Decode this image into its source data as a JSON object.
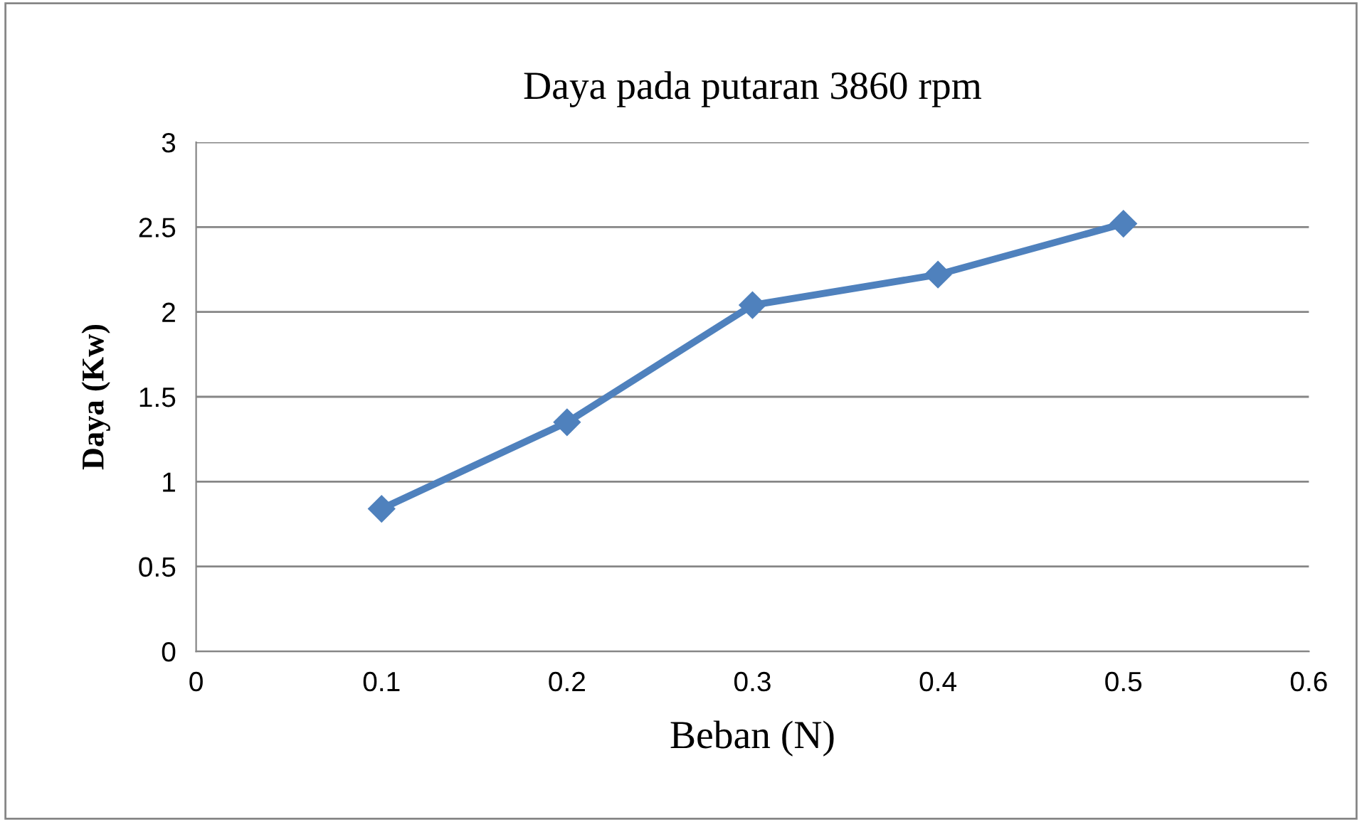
{
  "chart_data": {
    "type": "line",
    "title": "Daya pada putaran 3860 rpm",
    "xlabel": "Beban (N)",
    "ylabel": "Daya (Kw)",
    "x": [
      0.1,
      0.2,
      0.3,
      0.4,
      0.5
    ],
    "series": [
      {
        "color": "#4f81bd",
        "values": [
          0.84,
          1.35,
          2.04,
          2.22,
          2.52
        ]
      }
    ],
    "xlim": [
      0,
      0.6
    ],
    "xticks": [
      0,
      0.1,
      0.2,
      0.3,
      0.4,
      0.5,
      0.6
    ],
    "ylim": [
      0,
      3
    ],
    "yticks": [
      0,
      0.5,
      1,
      1.5,
      2,
      2.5,
      3
    ],
    "grid": "y",
    "marker": "diamond",
    "line_style": "solid",
    "legend": false
  }
}
